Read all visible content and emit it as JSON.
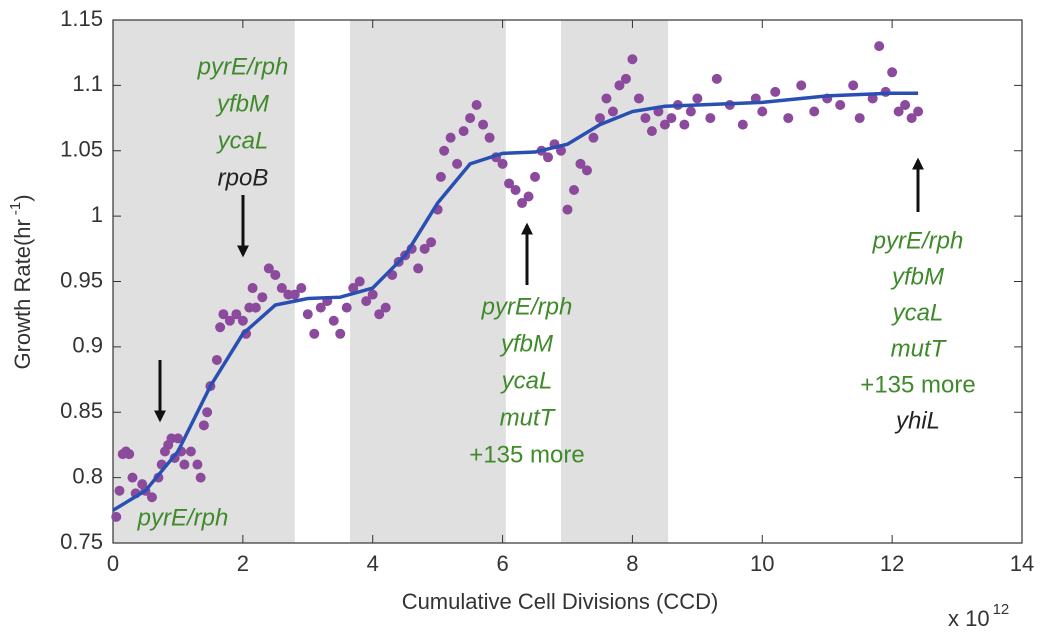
{
  "chart_data": {
    "type": "scatter",
    "xlabel": "Cumulative Cell Divisions (CCD)",
    "ylabel": "Growth Rate(hr",
    "ylabel_superscript": "-1",
    "ylabel_end": ")",
    "x_multiplier": "x 10",
    "x_exponent": "12",
    "xlim": [
      0,
      14
    ],
    "ylim": [
      0.75,
      1.15
    ],
    "xticks": [
      0,
      2,
      4,
      6,
      8,
      10,
      12,
      14
    ],
    "yticks": [
      0.75,
      0.8,
      0.85,
      0.9,
      0.95,
      1,
      1.05,
      1.1,
      1.15
    ],
    "shaded_regions": [
      [
        0,
        2.8
      ],
      [
        3.65,
        6.05
      ],
      [
        6.9,
        8.55
      ]
    ],
    "shade_color": "#e0e0e0",
    "series": [
      {
        "type": "scatter",
        "color": "#8b4a9c",
        "x": [
          0.05,
          0.1,
          0.15,
          0.2,
          0.25,
          0.3,
          0.35,
          0.45,
          0.5,
          0.6,
          0.7,
          0.75,
          0.8,
          0.85,
          0.9,
          0.95,
          1.0,
          1.05,
          1.1,
          1.2,
          1.3,
          1.35,
          1.4,
          1.45,
          1.5,
          1.6,
          1.65,
          1.7,
          1.8,
          1.9,
          2.0,
          2.05,
          2.1,
          2.15,
          2.2,
          2.3,
          2.4,
          2.5,
          2.6,
          2.7,
          2.8,
          2.9,
          3.0,
          3.1,
          3.2,
          3.3,
          3.4,
          3.5,
          3.6,
          3.7,
          3.8,
          3.9,
          4.0,
          4.1,
          4.2,
          4.3,
          4.4,
          4.5,
          4.6,
          4.7,
          4.8,
          4.9,
          5.0,
          5.05,
          5.1,
          5.2,
          5.3,
          5.4,
          5.5,
          5.6,
          5.7,
          5.8,
          5.9,
          6.0,
          6.1,
          6.2,
          6.3,
          6.4,
          6.5,
          6.6,
          6.7,
          6.8,
          6.9,
          7.0,
          7.1,
          7.2,
          7.3,
          7.4,
          7.5,
          7.6,
          7.7,
          7.8,
          7.9,
          8.0,
          8.1,
          8.2,
          8.3,
          8.4,
          8.5,
          8.6,
          8.7,
          8.8,
          8.9,
          9.0,
          9.2,
          9.3,
          9.5,
          9.7,
          9.9,
          10.0,
          10.2,
          10.4,
          10.6,
          10.8,
          11.0,
          11.2,
          11.4,
          11.5,
          11.7,
          11.8,
          11.9,
          12.0,
          12.1,
          12.2,
          12.3,
          12.4
        ],
        "y": [
          0.77,
          0.79,
          0.818,
          0.82,
          0.818,
          0.8,
          0.788,
          0.795,
          0.79,
          0.785,
          0.8,
          0.81,
          0.82,
          0.825,
          0.83,
          0.815,
          0.83,
          0.82,
          0.81,
          0.82,
          0.81,
          0.8,
          0.84,
          0.85,
          0.87,
          0.89,
          0.915,
          0.925,
          0.92,
          0.925,
          0.92,
          0.91,
          0.93,
          0.945,
          0.93,
          0.938,
          0.96,
          0.955,
          0.945,
          0.94,
          0.94,
          0.945,
          0.925,
          0.91,
          0.93,
          0.935,
          0.92,
          0.91,
          0.93,
          0.945,
          0.95,
          0.935,
          0.94,
          0.925,
          0.93,
          0.955,
          0.965,
          0.97,
          0.975,
          0.96,
          0.975,
          0.98,
          1.005,
          1.03,
          1.05,
          1.06,
          1.04,
          1.065,
          1.075,
          1.085,
          1.07,
          1.06,
          1.045,
          1.04,
          1.025,
          1.02,
          1.01,
          1.015,
          1.03,
          1.05,
          1.045,
          1.055,
          1.05,
          1.005,
          1.02,
          1.04,
          1.035,
          1.06,
          1.075,
          1.09,
          1.08,
          1.1,
          1.105,
          1.12,
          1.09,
          1.075,
          1.065,
          1.08,
          1.07,
          1.075,
          1.085,
          1.07,
          1.08,
          1.09,
          1.075,
          1.105,
          1.085,
          1.07,
          1.09,
          1.08,
          1.095,
          1.075,
          1.1,
          1.08,
          1.09,
          1.085,
          1.1,
          1.075,
          1.09,
          1.13,
          1.095,
          1.11,
          1.08,
          1.085,
          1.075,
          1.08
        ]
      },
      {
        "type": "line",
        "color": "#2a4fb2",
        "x": [
          0,
          0.5,
          1,
          1.5,
          2,
          2.5,
          3,
          3.5,
          4,
          4.5,
          5,
          5.5,
          6,
          6.5,
          7,
          7.5,
          8,
          8.5,
          9,
          10,
          11,
          12,
          12.4
        ],
        "y": [
          0.775,
          0.79,
          0.82,
          0.87,
          0.91,
          0.932,
          0.937,
          0.938,
          0.945,
          0.97,
          1.01,
          1.04,
          1.048,
          1.049,
          1.055,
          1.07,
          1.08,
          1.084,
          1.085,
          1.087,
          1.092,
          1.094,
          1.094
        ]
      }
    ],
    "annotations": [
      {
        "lines": [
          {
            "text": "pyrE/rph",
            "color": "#3f8a2a",
            "italic": true
          }
        ]
      },
      {
        "lines": [
          {
            "text": "pyrE/rph",
            "color": "#3f8a2a",
            "italic": true
          },
          {
            "text": "yfbM",
            "color": "#3f8a2a",
            "italic": true
          },
          {
            "text": "ycaL",
            "color": "#3f8a2a",
            "italic": true
          },
          {
            "text": "rpoB",
            "color": "#222222",
            "italic": true
          }
        ]
      },
      {
        "lines": [
          {
            "text": "pyrE/rph",
            "color": "#3f8a2a",
            "italic": true
          },
          {
            "text": "yfbM",
            "color": "#3f8a2a",
            "italic": true
          },
          {
            "text": "ycaL",
            "color": "#3f8a2a",
            "italic": true
          },
          {
            "text": "mutT",
            "color": "#3f8a2a",
            "italic": true
          },
          {
            "text": "+135 more",
            "color": "#3f8a2a",
            "italic": false
          }
        ]
      },
      {
        "lines": [
          {
            "text": "pyrE/rph",
            "color": "#3f8a2a",
            "italic": true
          },
          {
            "text": "yfbM",
            "color": "#3f8a2a",
            "italic": true
          },
          {
            "text": "ycaL",
            "color": "#3f8a2a",
            "italic": true
          },
          {
            "text": "mutT",
            "color": "#3f8a2a",
            "italic": true
          },
          {
            "text": "+135 more",
            "color": "#3f8a2a",
            "italic": false
          },
          {
            "text": "yhiL",
            "color": "#222222",
            "italic": true
          }
        ]
      }
    ]
  }
}
